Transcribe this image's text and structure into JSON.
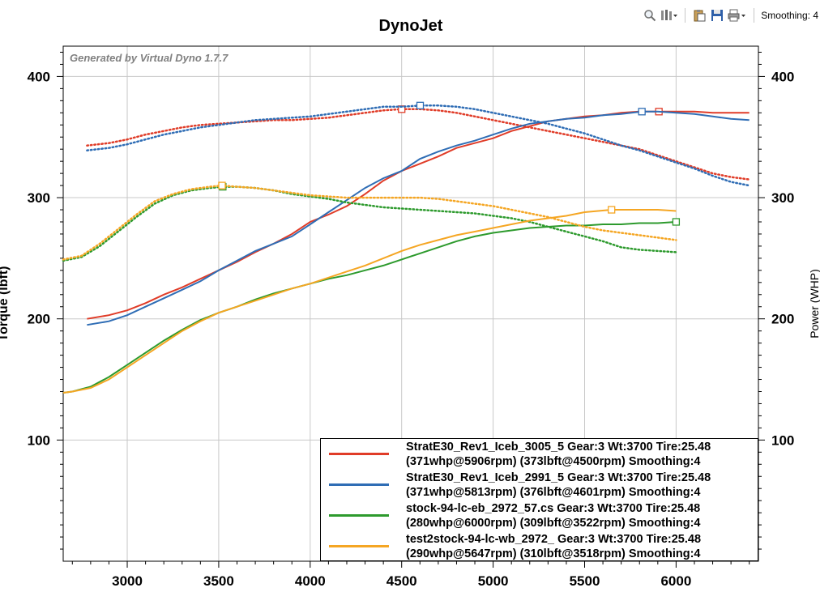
{
  "toolbar": {
    "smoothing_label": "Smoothing: 4",
    "icons": [
      "zoom-icon",
      "settings-dropdown-icon",
      "paste-icon",
      "save-icon",
      "print-dropdown-icon"
    ]
  },
  "chart_data": {
    "type": "line",
    "title": "DynoJet",
    "watermark": "Generated by Virtual Dyno 1.7.7",
    "xlim": [
      2650,
      6450
    ],
    "ylim": [
      0,
      425
    ],
    "x_ticks": [
      3000,
      3500,
      4000,
      4500,
      5000,
      5500,
      6000
    ],
    "y_ticks": [
      100,
      200,
      300,
      400
    ],
    "ylabel_left": "Torque (lbft)",
    "ylabel_right": "Power (WHP)",
    "grid": true,
    "legend_position": "bottom-right",
    "series": [
      {
        "name": "StratE30_Rev1_Iceb_3005_5 Gear:3 Wt:3700 Tire:25.48",
        "detail": "(371whp@5906rpm) (373lbft@4500rpm) Smoothing:4",
        "color": "#e03c28",
        "power": [
          [
            2780,
            200
          ],
          [
            2900,
            203
          ],
          [
            3000,
            207
          ],
          [
            3100,
            213
          ],
          [
            3200,
            220
          ],
          [
            3300,
            226
          ],
          [
            3400,
            233
          ],
          [
            3500,
            240
          ],
          [
            3600,
            247
          ],
          [
            3700,
            255
          ],
          [
            3800,
            262
          ],
          [
            3900,
            270
          ],
          [
            4000,
            280
          ],
          [
            4100,
            286
          ],
          [
            4200,
            293
          ],
          [
            4300,
            303
          ],
          [
            4400,
            314
          ],
          [
            4500,
            322
          ],
          [
            4600,
            328
          ],
          [
            4700,
            334
          ],
          [
            4800,
            341
          ],
          [
            4900,
            345
          ],
          [
            5000,
            349
          ],
          [
            5100,
            355
          ],
          [
            5200,
            359
          ],
          [
            5300,
            363
          ],
          [
            5400,
            365
          ],
          [
            5500,
            367
          ],
          [
            5600,
            368
          ],
          [
            5700,
            370
          ],
          [
            5800,
            371
          ],
          [
            5906,
            371
          ],
          [
            6000,
            371
          ],
          [
            6100,
            371
          ],
          [
            6200,
            370
          ],
          [
            6300,
            370
          ],
          [
            6400,
            370
          ]
        ],
        "torque": [
          [
            2780,
            343
          ],
          [
            2900,
            345
          ],
          [
            3000,
            348
          ],
          [
            3100,
            352
          ],
          [
            3200,
            355
          ],
          [
            3300,
            358
          ],
          [
            3400,
            360
          ],
          [
            3500,
            361
          ],
          [
            3600,
            362
          ],
          [
            3700,
            363
          ],
          [
            3800,
            364
          ],
          [
            3900,
            364
          ],
          [
            4000,
            365
          ],
          [
            4100,
            366
          ],
          [
            4200,
            368
          ],
          [
            4300,
            370
          ],
          [
            4400,
            372
          ],
          [
            4500,
            373
          ],
          [
            4600,
            373
          ],
          [
            4700,
            372
          ],
          [
            4800,
            370
          ],
          [
            4900,
            367
          ],
          [
            5000,
            364
          ],
          [
            5100,
            361
          ],
          [
            5200,
            358
          ],
          [
            5300,
            355
          ],
          [
            5400,
            352
          ],
          [
            5500,
            349
          ],
          [
            5600,
            346
          ],
          [
            5700,
            343
          ],
          [
            5800,
            340
          ],
          [
            5900,
            335
          ],
          [
            6000,
            330
          ],
          [
            6100,
            325
          ],
          [
            6200,
            320
          ],
          [
            6300,
            317
          ],
          [
            6400,
            315
          ]
        ],
        "power_peak_x": 5906,
        "torque_peak_x": 4500
      },
      {
        "name": "StratE30_Rev1_Iceb_2991_5 Gear:3 Wt:3700 Tire:25.48",
        "detail": "(371whp@5813rpm) (376lbft@4601rpm) Smoothing:4",
        "color": "#2f6db5",
        "power": [
          [
            2780,
            195
          ],
          [
            2900,
            198
          ],
          [
            3000,
            203
          ],
          [
            3100,
            210
          ],
          [
            3200,
            217
          ],
          [
            3300,
            224
          ],
          [
            3400,
            231
          ],
          [
            3500,
            240
          ],
          [
            3600,
            248
          ],
          [
            3700,
            256
          ],
          [
            3800,
            262
          ],
          [
            3900,
            268
          ],
          [
            4000,
            278
          ],
          [
            4100,
            288
          ],
          [
            4200,
            298
          ],
          [
            4300,
            308
          ],
          [
            4400,
            316
          ],
          [
            4500,
            322
          ],
          [
            4600,
            332
          ],
          [
            4700,
            338
          ],
          [
            4800,
            343
          ],
          [
            4900,
            347
          ],
          [
            5000,
            352
          ],
          [
            5100,
            357
          ],
          [
            5200,
            361
          ],
          [
            5300,
            363
          ],
          [
            5400,
            365
          ],
          [
            5500,
            366
          ],
          [
            5600,
            368
          ],
          [
            5700,
            369
          ],
          [
            5813,
            371
          ],
          [
            5900,
            371
          ],
          [
            6000,
            370
          ],
          [
            6100,
            369
          ],
          [
            6200,
            367
          ],
          [
            6300,
            365
          ],
          [
            6400,
            364
          ]
        ],
        "torque": [
          [
            2780,
            339
          ],
          [
            2900,
            341
          ],
          [
            3000,
            344
          ],
          [
            3100,
            348
          ],
          [
            3200,
            352
          ],
          [
            3300,
            355
          ],
          [
            3400,
            358
          ],
          [
            3500,
            360
          ],
          [
            3600,
            362
          ],
          [
            3700,
            364
          ],
          [
            3800,
            365
          ],
          [
            3900,
            366
          ],
          [
            4000,
            367
          ],
          [
            4100,
            369
          ],
          [
            4200,
            371
          ],
          [
            4300,
            373
          ],
          [
            4400,
            375
          ],
          [
            4500,
            375
          ],
          [
            4601,
            376
          ],
          [
            4700,
            376
          ],
          [
            4800,
            375
          ],
          [
            4900,
            373
          ],
          [
            5000,
            370
          ],
          [
            5100,
            367
          ],
          [
            5200,
            364
          ],
          [
            5300,
            361
          ],
          [
            5400,
            357
          ],
          [
            5500,
            353
          ],
          [
            5600,
            348
          ],
          [
            5700,
            343
          ],
          [
            5800,
            339
          ],
          [
            5900,
            334
          ],
          [
            6000,
            329
          ],
          [
            6100,
            324
          ],
          [
            6200,
            318
          ],
          [
            6300,
            313
          ],
          [
            6400,
            310
          ]
        ],
        "power_peak_x": 5813,
        "torque_peak_x": 4601
      },
      {
        "name": "stock-94-lc-eb_2972_57.cs Gear:3 Wt:3700 Tire:25.48",
        "detail": "(280whp@6000rpm) (309lbft@3522rpm) Smoothing:4",
        "color": "#2d9a2d",
        "power": [
          [
            2650,
            139
          ],
          [
            2700,
            140
          ],
          [
            2800,
            144
          ],
          [
            2900,
            152
          ],
          [
            3000,
            162
          ],
          [
            3100,
            172
          ],
          [
            3200,
            182
          ],
          [
            3300,
            191
          ],
          [
            3400,
            199
          ],
          [
            3500,
            205
          ],
          [
            3600,
            210
          ],
          [
            3700,
            216
          ],
          [
            3800,
            221
          ],
          [
            3900,
            225
          ],
          [
            4000,
            229
          ],
          [
            4100,
            233
          ],
          [
            4200,
            236
          ],
          [
            4300,
            240
          ],
          [
            4400,
            244
          ],
          [
            4500,
            249
          ],
          [
            4600,
            254
          ],
          [
            4700,
            259
          ],
          [
            4800,
            264
          ],
          [
            4900,
            268
          ],
          [
            5000,
            271
          ],
          [
            5100,
            273
          ],
          [
            5200,
            275
          ],
          [
            5300,
            276
          ],
          [
            5400,
            277
          ],
          [
            5500,
            277
          ],
          [
            5600,
            278
          ],
          [
            5700,
            278
          ],
          [
            5800,
            279
          ],
          [
            5900,
            279
          ],
          [
            6000,
            280
          ]
        ],
        "torque": [
          [
            2650,
            248
          ],
          [
            2750,
            251
          ],
          [
            2850,
            260
          ],
          [
            2950,
            272
          ],
          [
            3050,
            284
          ],
          [
            3150,
            295
          ],
          [
            3250,
            302
          ],
          [
            3350,
            306
          ],
          [
            3450,
            308
          ],
          [
            3522,
            309
          ],
          [
            3600,
            309
          ],
          [
            3700,
            308
          ],
          [
            3800,
            306
          ],
          [
            3900,
            303
          ],
          [
            4000,
            301
          ],
          [
            4100,
            299
          ],
          [
            4200,
            296
          ],
          [
            4300,
            294
          ],
          [
            4400,
            292
          ],
          [
            4500,
            291
          ],
          [
            4600,
            290
          ],
          [
            4700,
            289
          ],
          [
            4800,
            288
          ],
          [
            4900,
            287
          ],
          [
            5000,
            285
          ],
          [
            5100,
            283
          ],
          [
            5200,
            280
          ],
          [
            5300,
            276
          ],
          [
            5400,
            272
          ],
          [
            5500,
            268
          ],
          [
            5600,
            264
          ],
          [
            5700,
            259
          ],
          [
            5800,
            257
          ],
          [
            5900,
            256
          ],
          [
            6000,
            255
          ]
        ],
        "power_peak_x": 6000,
        "torque_peak_x": 3522
      },
      {
        "name": "test2stock-94-lc-wb_2972_ Gear:3 Wt:3700 Tire:25.48",
        "detail": "(290whp@5647rpm) (310lbft@3518rpm) Smoothing:4",
        "color": "#f5a623",
        "power": [
          [
            2650,
            139
          ],
          [
            2700,
            140
          ],
          [
            2800,
            143
          ],
          [
            2900,
            150
          ],
          [
            3000,
            160
          ],
          [
            3100,
            170
          ],
          [
            3200,
            180
          ],
          [
            3300,
            190
          ],
          [
            3400,
            198
          ],
          [
            3500,
            205
          ],
          [
            3600,
            210
          ],
          [
            3700,
            215
          ],
          [
            3800,
            220
          ],
          [
            3900,
            225
          ],
          [
            4000,
            229
          ],
          [
            4100,
            234
          ],
          [
            4200,
            239
          ],
          [
            4300,
            244
          ],
          [
            4400,
            250
          ],
          [
            4500,
            256
          ],
          [
            4600,
            261
          ],
          [
            4700,
            265
          ],
          [
            4800,
            269
          ],
          [
            4900,
            272
          ],
          [
            5000,
            275
          ],
          [
            5100,
            278
          ],
          [
            5200,
            281
          ],
          [
            5300,
            283
          ],
          [
            5400,
            285
          ],
          [
            5500,
            288
          ],
          [
            5647,
            290
          ],
          [
            5700,
            290
          ],
          [
            5800,
            290
          ],
          [
            5900,
            290
          ],
          [
            6000,
            289
          ]
        ],
        "torque": [
          [
            2650,
            249
          ],
          [
            2750,
            252
          ],
          [
            2850,
            262
          ],
          [
            2950,
            274
          ],
          [
            3050,
            286
          ],
          [
            3150,
            297
          ],
          [
            3250,
            303
          ],
          [
            3350,
            307
          ],
          [
            3450,
            309
          ],
          [
            3518,
            310
          ],
          [
            3600,
            309
          ],
          [
            3700,
            308
          ],
          [
            3800,
            306
          ],
          [
            3900,
            304
          ],
          [
            4000,
            302
          ],
          [
            4100,
            301
          ],
          [
            4200,
            300
          ],
          [
            4300,
            300
          ],
          [
            4400,
            300
          ],
          [
            4500,
            300
          ],
          [
            4600,
            300
          ],
          [
            4700,
            299
          ],
          [
            4800,
            297
          ],
          [
            4900,
            295
          ],
          [
            5000,
            293
          ],
          [
            5100,
            290
          ],
          [
            5200,
            287
          ],
          [
            5300,
            284
          ],
          [
            5400,
            280
          ],
          [
            5500,
            276
          ],
          [
            5600,
            273
          ],
          [
            5700,
            271
          ],
          [
            5800,
            269
          ],
          [
            5900,
            267
          ],
          [
            6000,
            265
          ]
        ],
        "power_peak_x": 5647,
        "torque_peak_x": 3518
      }
    ]
  }
}
